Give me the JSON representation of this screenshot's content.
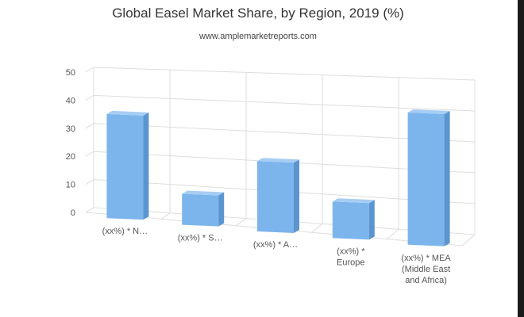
{
  "chart_data": {
    "type": "bar",
    "title": "Global Easel Market Share, by Region, 2019 (%)",
    "subtitle": "www.amplemarketreports.com",
    "categories": [
      "(xx%) * N…",
      "(xx%) * S…",
      "(xx%) * A…",
      "(xx%) * Europe",
      "(xx%) * MEA (Middle East and Africa)"
    ],
    "category_label_lines": [
      [
        "(xx%) * N…"
      ],
      [
        "(xx%) * S…"
      ],
      [
        "(xx%) * A…"
      ],
      [
        "(xx%) *",
        "Europe"
      ],
      [
        "(xx%) * MEA",
        "(Middle East",
        "and Africa)"
      ]
    ],
    "values": [
      37,
      11,
      25,
      13,
      47
    ],
    "ylim": [
      0,
      50
    ],
    "yticks": [
      0,
      10,
      20,
      30,
      40,
      50
    ],
    "xlabel": "",
    "ylabel": "",
    "grid": true,
    "legend": "none",
    "style": "3d-perspective",
    "colors": {
      "bar_front": "#7cb5ec",
      "bar_side": "#5b95cf",
      "bar_top": "#a6cdf3",
      "grid": "#dddddd"
    }
  }
}
